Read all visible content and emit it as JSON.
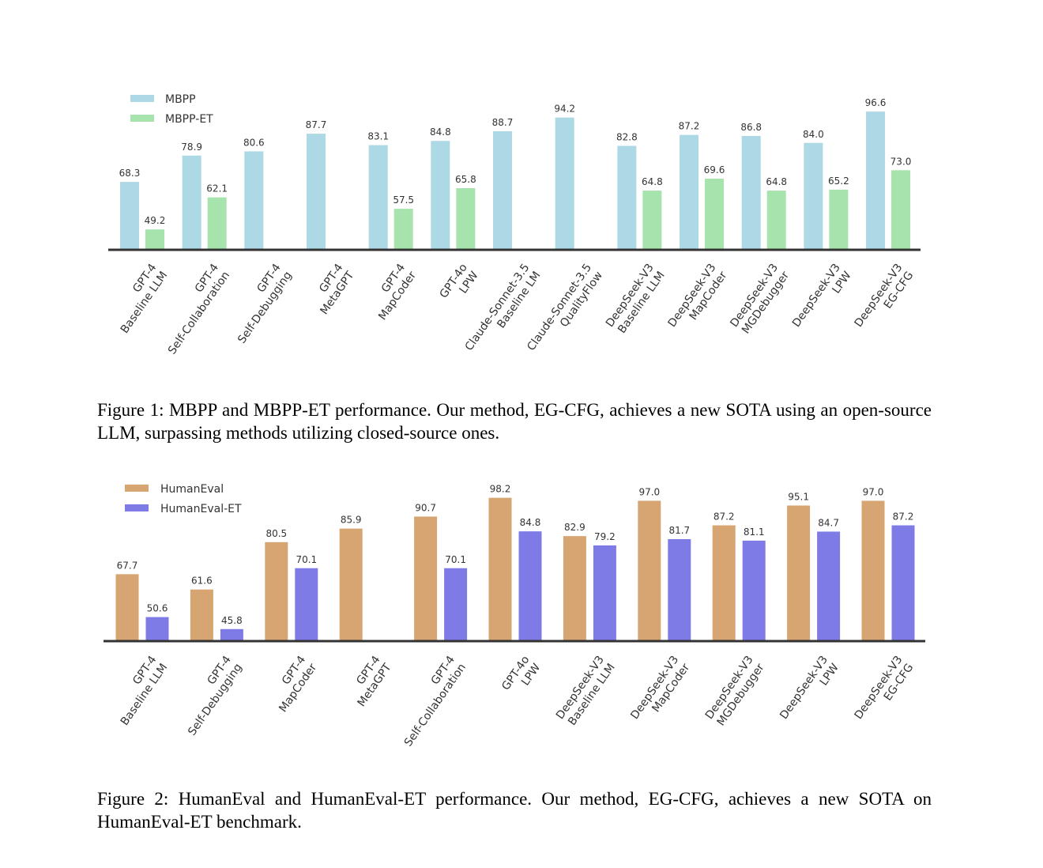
{
  "chart_data": [
    {
      "type": "bar",
      "legend_position": "top-left",
      "grid": false,
      "ylim": [
        41,
        100
      ],
      "colors": [
        "#add8e6",
        "#a6e3ad"
      ],
      "categories": [
        [
          "GPT-4",
          "Baseline LLM"
        ],
        [
          "GPT-4",
          "Self-Collaboration"
        ],
        [
          "GPT-4",
          "Self-Debugging"
        ],
        [
          "GPT-4",
          "MetaGPT"
        ],
        [
          "GPT-4",
          "MapCoder"
        ],
        [
          "GPT-4o",
          "LPW"
        ],
        [
          "Claude-Sonnet-3.5",
          "Baseline LM"
        ],
        [
          "Claude-Sonnet-3.5",
          "QualityFlow"
        ],
        [
          "DeepSeek-V3",
          "Baseline LLM"
        ],
        [
          "DeepSeek-V3",
          "MapCoder"
        ],
        [
          "DeepSeek-V3",
          "MGDebugger"
        ],
        [
          "DeepSeek-V3",
          "LPW"
        ],
        [
          "DeepSeek-V3",
          "EG-CFG"
        ]
      ],
      "series": [
        {
          "name": "MBPP",
          "values": [
            68.3,
            78.9,
            80.6,
            87.7,
            83.1,
            84.8,
            88.7,
            94.2,
            82.8,
            87.2,
            86.8,
            84.0,
            96.6
          ]
        },
        {
          "name": "MBPP-ET",
          "values": [
            49.2,
            62.1,
            null,
            null,
            57.5,
            65.8,
            null,
            null,
            64.8,
            69.6,
            64.8,
            65.2,
            73.0
          ]
        }
      ],
      "caption": "Figure 1: MBPP and MBPP-ET performance. Our method, EG-CFG, achieves a new SOTA using an open-source LLM, surpassing methods utilizing closed-source ones."
    },
    {
      "type": "bar",
      "legend_position": "top-left",
      "grid": false,
      "ylim": [
        41,
        100
      ],
      "colors": [
        "#d6a571",
        "#7f7be6"
      ],
      "categories": [
        [
          "GPT-4",
          "Baseline LLM"
        ],
        [
          "GPT-4",
          "Self-Debugging"
        ],
        [
          "GPT-4",
          "MapCoder"
        ],
        [
          "GPT-4",
          "MetaGPT"
        ],
        [
          "GPT-4",
          "Self-Collaboration"
        ],
        [
          "GPT-4o",
          "LPW"
        ],
        [
          "DeepSeek-V3",
          "Baseline LLM"
        ],
        [
          "DeepSeek-V3",
          "MapCoder"
        ],
        [
          "DeepSeek-V3",
          "MGDebugger"
        ],
        [
          "DeepSeek-V3",
          "LPW"
        ],
        [
          "DeepSeek-V3",
          "EG-CFG"
        ]
      ],
      "series": [
        {
          "name": "HumanEval",
          "values": [
            67.7,
            61.6,
            80.5,
            85.9,
            90.7,
            98.2,
            82.9,
            97.0,
            87.2,
            95.1,
            97.0
          ]
        },
        {
          "name": "HumanEval-ET",
          "values": [
            50.6,
            45.8,
            70.1,
            null,
            70.1,
            84.8,
            79.2,
            81.7,
            81.1,
            84.7,
            87.2
          ]
        }
      ],
      "caption": "Figure 2: HumanEval and HumanEval-ET performance. Our method, EG-CFG, achieves a new SOTA on HumanEval-ET benchmark."
    }
  ]
}
